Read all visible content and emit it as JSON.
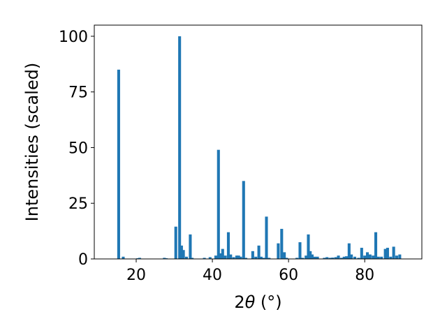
{
  "chart_data": {
    "type": "bar",
    "xlabel_prefix": "2",
    "xlabel_symbol": "θ",
    "xlabel_unit": " (°)",
    "ylabel": "Intensities (scaled)",
    "xlim": [
      9,
      95
    ],
    "ylim": [
      0,
      105
    ],
    "xticks": [
      20,
      40,
      60,
      80
    ],
    "yticks": [
      0,
      25,
      50,
      75,
      100
    ],
    "bar_color": "#1f77b4",
    "bar_width": 0.75,
    "x": [
      15.4,
      16.6,
      20.4,
      20.9,
      27.4,
      27.9,
      30.4,
      31.4,
      31.9,
      32.4,
      33.2,
      34.2,
      34.7,
      37.9,
      39.4,
      40.9,
      41.6,
      42.2,
      42.7,
      43.4,
      44.2,
      44.8,
      45.6,
      46.4,
      46.9,
      47.4,
      48.2,
      48.8,
      50.6,
      51.4,
      52.2,
      52.8,
      53.5,
      54.2,
      54.9,
      57.3,
      58.2,
      58.9,
      59.5,
      62.2,
      63.0,
      63.7,
      64.6,
      65.2,
      65.7,
      66.2,
      66.9,
      67.6,
      69.4,
      70.1,
      70.9,
      71.6,
      72.4,
      73.1,
      73.9,
      74.6,
      75.2,
      75.9,
      76.5,
      77.4,
      78.4,
      79.2,
      80.0,
      80.7,
      81.4,
      82.2,
      82.9,
      83.6,
      84.4,
      85.4,
      86.0,
      86.8,
      87.6,
      88.4,
      89.2
    ],
    "values": [
      85,
      1,
      0.3,
      0.5,
      0.5,
      0.3,
      14.5,
      100,
      6,
      4,
      1,
      11,
      0.5,
      0.5,
      0.8,
      1.5,
      49,
      2.5,
      4.5,
      1.5,
      12,
      2,
      0.8,
      1.5,
      1.5,
      1,
      35,
      0.5,
      3.5,
      1,
      6,
      1,
      0.5,
      19,
      0.5,
      7,
      13.5,
      3,
      0.5,
      0.5,
      7.5,
      0.5,
      1.5,
      11,
      3.5,
      2,
      1,
      1,
      0.5,
      0.8,
      0.5,
      0.6,
      0.8,
      1.5,
      0.5,
      1,
      1.2,
      7,
      2,
      1,
      0.5,
      5,
      1.5,
      3,
      2,
      1.5,
      12,
      1,
      1,
      4.5,
      5,
      1,
      5.5,
      1.5,
      2
    ]
  }
}
